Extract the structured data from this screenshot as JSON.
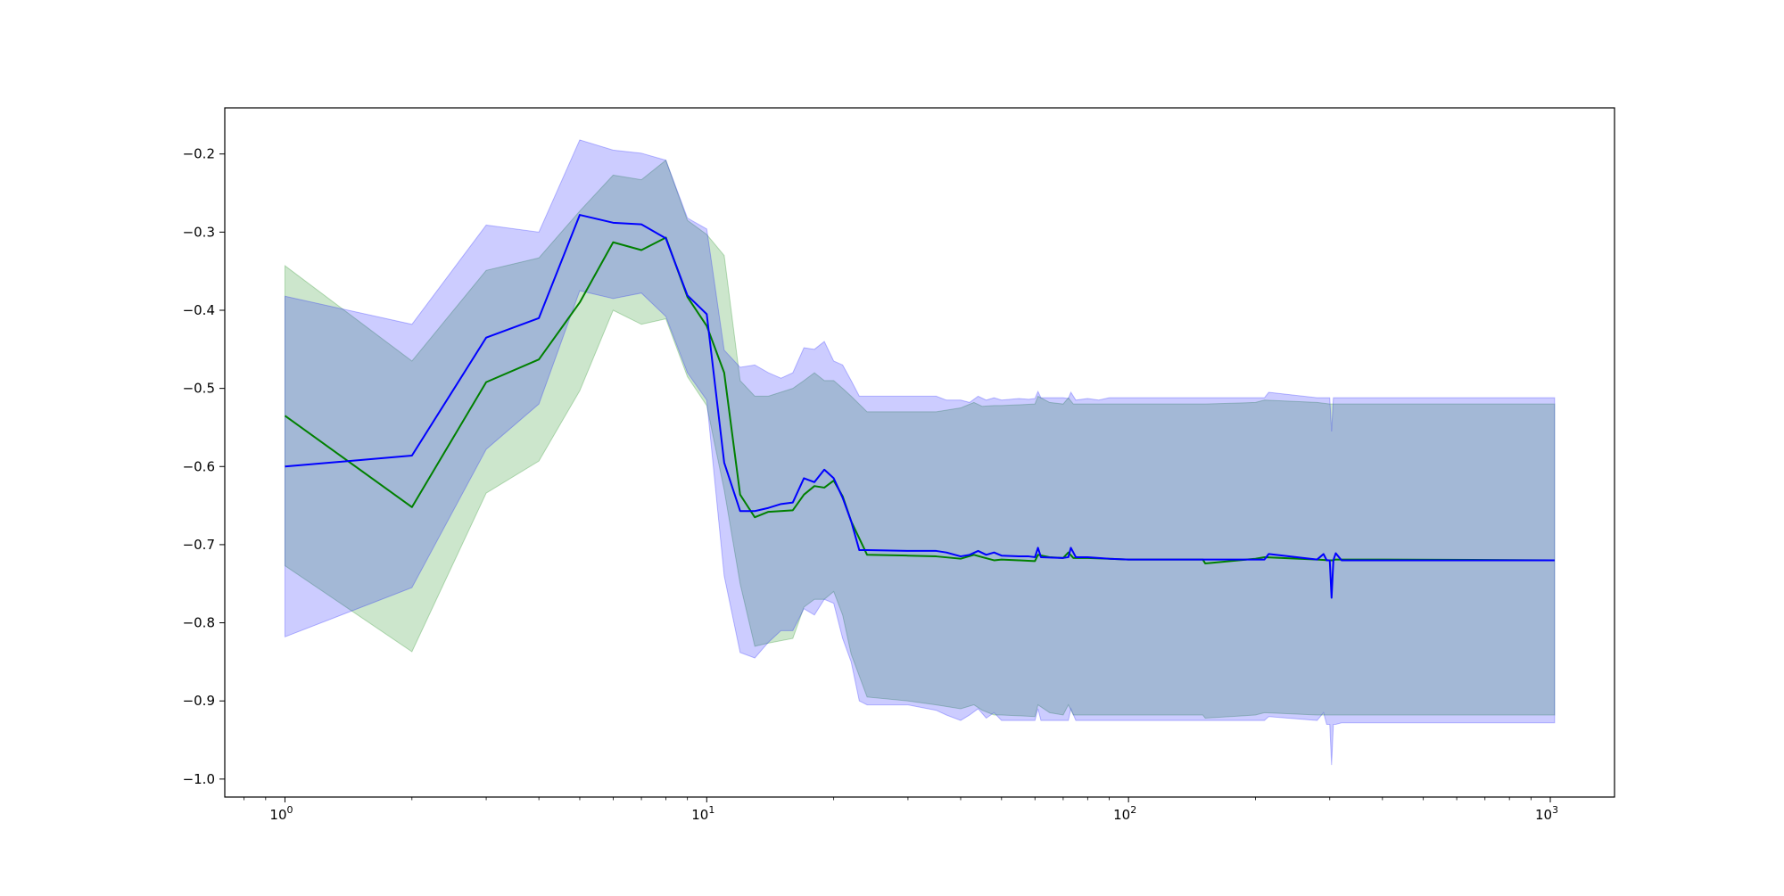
{
  "chart_data": {
    "type": "line",
    "title": "",
    "xlabel": "",
    "ylabel": "",
    "x_scale": "log",
    "xlim": [
      0.72,
      1420
    ],
    "ylim": [
      -1.023,
      -0.141
    ],
    "grid": false,
    "legend": "none",
    "x_ticks": [
      {
        "value": 1,
        "base": "10",
        "exp": "0"
      },
      {
        "value": 10,
        "base": "10",
        "exp": "1"
      },
      {
        "value": 100,
        "base": "10",
        "exp": "2"
      },
      {
        "value": 1000,
        "base": "10",
        "exp": "3"
      }
    ],
    "y_ticks": [
      {
        "value": -0.2,
        "label": "−0.2"
      },
      {
        "value": -0.3,
        "label": "−0.3"
      },
      {
        "value": -0.4,
        "label": "−0.4"
      },
      {
        "value": -0.5,
        "label": "−0.5"
      },
      {
        "value": -0.6,
        "label": "−0.6"
      },
      {
        "value": -0.7,
        "label": "−0.7"
      },
      {
        "value": -0.8,
        "label": "−0.8"
      },
      {
        "value": -0.9,
        "label": "−0.9"
      },
      {
        "value": -1.0,
        "label": "−1.0"
      }
    ],
    "series": [
      {
        "color": "#008000",
        "band_color": "#008000",
        "band_opacity": 0.2,
        "x": [
          1,
          2,
          3,
          4,
          5,
          6,
          7,
          8,
          9,
          10,
          11,
          12,
          13,
          14,
          16,
          17,
          18,
          19,
          20,
          21,
          22,
          24,
          30,
          35,
          40,
          43,
          45,
          48,
          50,
          55,
          60,
          61,
          65,
          70,
          72,
          74,
          80,
          90,
          100,
          150,
          152,
          200,
          210,
          280,
          300,
          305,
          310,
          400,
          1024
        ],
        "y": [
          -0.535,
          -0.652,
          -0.492,
          -0.463,
          -0.39,
          -0.313,
          -0.323,
          -0.307,
          -0.383,
          -0.42,
          -0.48,
          -0.636,
          -0.665,
          -0.658,
          -0.656,
          -0.636,
          -0.625,
          -0.627,
          -0.618,
          -0.638,
          -0.67,
          -0.713,
          -0.714,
          -0.715,
          -0.718,
          -0.713,
          -0.716,
          -0.72,
          -0.719,
          -0.72,
          -0.721,
          -0.713,
          -0.716,
          -0.717,
          -0.71,
          -0.717,
          -0.717,
          -0.718,
          -0.719,
          -0.719,
          -0.724,
          -0.718,
          -0.716,
          -0.719,
          -0.72,
          -0.72,
          -0.719,
          -0.719,
          -0.72
        ],
        "upper": [
          -0.343,
          -0.465,
          -0.349,
          -0.333,
          -0.273,
          -0.227,
          -0.233,
          -0.208,
          -0.285,
          -0.303,
          -0.33,
          -0.49,
          -0.51,
          -0.51,
          -0.5,
          -0.49,
          -0.48,
          -0.49,
          -0.49,
          -0.5,
          -0.51,
          -0.53,
          -0.53,
          -0.53,
          -0.525,
          -0.518,
          -0.523,
          -0.522,
          -0.522,
          -0.521,
          -0.52,
          -0.51,
          -0.518,
          -0.52,
          -0.512,
          -0.52,
          -0.52,
          -0.52,
          -0.52,
          -0.52,
          -0.52,
          -0.518,
          -0.515,
          -0.518,
          -0.52,
          -0.52,
          -0.52,
          -0.52,
          -0.52
        ],
        "lower": [
          -0.727,
          -0.837,
          -0.634,
          -0.593,
          -0.503,
          -0.4,
          -0.418,
          -0.411,
          -0.485,
          -0.522,
          -0.63,
          -0.75,
          -0.83,
          -0.826,
          -0.82,
          -0.78,
          -0.77,
          -0.77,
          -0.76,
          -0.79,
          -0.84,
          -0.895,
          -0.9,
          -0.905,
          -0.91,
          -0.905,
          -0.912,
          -0.918,
          -0.918,
          -0.919,
          -0.92,
          -0.905,
          -0.915,
          -0.918,
          -0.905,
          -0.918,
          -0.918,
          -0.918,
          -0.918,
          -0.918,
          -0.922,
          -0.918,
          -0.915,
          -0.918,
          -0.918,
          -0.918,
          -0.918,
          -0.918,
          -0.918
        ]
      },
      {
        "color": "#0000ff",
        "band_color": "#0000ff",
        "band_opacity": 0.2,
        "x": [
          1,
          2,
          3,
          4,
          5,
          6,
          7,
          8,
          9,
          10,
          11,
          12,
          13,
          14,
          15,
          16,
          17,
          18,
          19,
          20,
          21,
          22,
          23,
          24,
          30,
          35,
          37,
          40,
          42,
          44,
          46,
          48,
          50,
          55,
          58,
          60,
          61,
          62,
          70,
          72,
          73,
          75,
          80,
          85,
          90,
          100,
          150,
          152,
          200,
          210,
          215,
          280,
          290,
          295,
          300,
          303,
          306,
          310,
          320,
          400,
          1024
        ],
        "y": [
          -0.6,
          -0.586,
          -0.435,
          -0.41,
          -0.278,
          -0.288,
          -0.29,
          -0.308,
          -0.381,
          -0.405,
          -0.595,
          -0.657,
          -0.657,
          -0.653,
          -0.648,
          -0.646,
          -0.615,
          -0.62,
          -0.604,
          -0.615,
          -0.64,
          -0.67,
          -0.707,
          -0.707,
          -0.708,
          -0.708,
          -0.71,
          -0.715,
          -0.713,
          -0.708,
          -0.713,
          -0.71,
          -0.714,
          -0.715,
          -0.715,
          -0.716,
          -0.704,
          -0.716,
          -0.717,
          -0.716,
          -0.704,
          -0.716,
          -0.716,
          -0.717,
          -0.718,
          -0.719,
          -0.719,
          -0.719,
          -0.719,
          -0.719,
          -0.712,
          -0.719,
          -0.712,
          -0.72,
          -0.72,
          -0.768,
          -0.72,
          -0.711,
          -0.72,
          -0.72,
          -0.72
        ],
        "upper": [
          -0.382,
          -0.418,
          -0.291,
          -0.3,
          -0.182,
          -0.195,
          -0.199,
          -0.208,
          -0.282,
          -0.296,
          -0.451,
          -0.473,
          -0.47,
          -0.48,
          -0.487,
          -0.48,
          -0.448,
          -0.45,
          -0.44,
          -0.465,
          -0.47,
          -0.49,
          -0.51,
          -0.51,
          -0.51,
          -0.51,
          -0.515,
          -0.515,
          -0.518,
          -0.51,
          -0.515,
          -0.512,
          -0.515,
          -0.513,
          -0.514,
          -0.513,
          -0.504,
          -0.512,
          -0.512,
          -0.513,
          -0.505,
          -0.515,
          -0.513,
          -0.515,
          -0.512,
          -0.512,
          -0.512,
          -0.512,
          -0.512,
          -0.512,
          -0.505,
          -0.512,
          -0.512,
          -0.512,
          -0.512,
          -0.555,
          -0.512,
          -0.512,
          -0.512,
          -0.512,
          -0.512
        ],
        "lower": [
          -0.818,
          -0.755,
          -0.578,
          -0.52,
          -0.375,
          -0.385,
          -0.378,
          -0.408,
          -0.48,
          -0.515,
          -0.74,
          -0.838,
          -0.845,
          -0.825,
          -0.81,
          -0.81,
          -0.782,
          -0.79,
          -0.77,
          -0.775,
          -0.82,
          -0.85,
          -0.9,
          -0.905,
          -0.905,
          -0.912,
          -0.918,
          -0.925,
          -0.918,
          -0.91,
          -0.922,
          -0.915,
          -0.925,
          -0.925,
          -0.925,
          -0.925,
          -0.91,
          -0.925,
          -0.925,
          -0.925,
          -0.91,
          -0.925,
          -0.925,
          -0.925,
          -0.925,
          -0.925,
          -0.925,
          -0.925,
          -0.925,
          -0.925,
          -0.92,
          -0.925,
          -0.915,
          -0.93,
          -0.93,
          -0.982,
          -0.93,
          -0.93,
          -0.928,
          -0.928,
          -0.928
        ]
      }
    ]
  }
}
